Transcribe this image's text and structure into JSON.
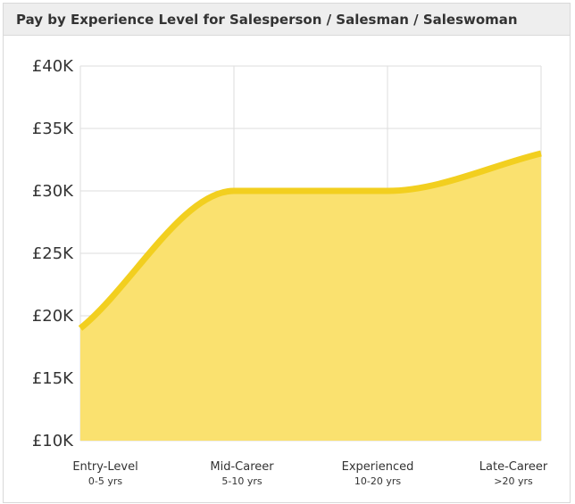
{
  "header": {
    "title": "Pay by Experience Level for Salesperson / Salesman / Saleswoman"
  },
  "colors": {
    "line": "#f2cf1f",
    "area": "#fae16f",
    "grid": "#dddddd",
    "header_bg": "#eeeeee"
  },
  "chart_data": {
    "type": "area",
    "title": "Pay by Experience Level for Salesperson / Salesman / Saleswoman",
    "categories": [
      "Entry-Level",
      "Mid-Career",
      "Experienced",
      "Late-Career"
    ],
    "category_sublabels": [
      "0-5 yrs",
      "5-10 yrs",
      "10-20 yrs",
      ">20 yrs"
    ],
    "values": [
      19000,
      30000,
      30000,
      33000
    ],
    "ylim": [
      10000,
      40000
    ],
    "yticks": [
      10000,
      15000,
      20000,
      25000,
      30000,
      35000,
      40000
    ],
    "ytick_labels": [
      "£10K",
      "£15K",
      "£20K",
      "£25K",
      "£30K",
      "£35K",
      "£40K"
    ],
    "xlabel": "",
    "ylabel": "",
    "grid": true,
    "legend": "none",
    "smooth": true
  }
}
